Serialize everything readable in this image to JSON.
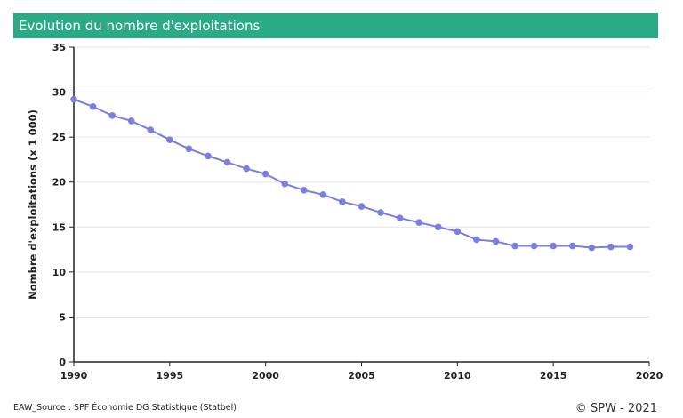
{
  "header": {
    "title": "Evolution du nombre d'exploitations"
  },
  "footer": {
    "source": "EAW_Source : SPF Économie DG Statistique (Statbel)",
    "credit": "© SPW - 2021"
  },
  "colors": {
    "header_bg": "#2aaa87",
    "line": "#7b80e0",
    "grid": "#e6e6e6"
  },
  "chart_data": {
    "type": "line",
    "title": "Evolution du nombre d'exploitations",
    "xlabel": "",
    "ylabel": "Nombre d'exploitations (x 1 000)",
    "xlim": [
      1990,
      2020
    ],
    "ylim": [
      0,
      35
    ],
    "x_ticks": [
      1990,
      1995,
      2000,
      2005,
      2010,
      2015,
      2020
    ],
    "y_ticks": [
      0,
      5,
      10,
      15,
      20,
      25,
      30,
      35
    ],
    "grid": true,
    "x": [
      1990,
      1991,
      1992,
      1993,
      1994,
      1995,
      1996,
      1997,
      1998,
      1999,
      2000,
      2001,
      2002,
      2003,
      2004,
      2005,
      2006,
      2007,
      2008,
      2009,
      2010,
      2011,
      2012,
      2013,
      2014,
      2015,
      2016,
      2017,
      2018,
      2019
    ],
    "series": [
      {
        "values": [
          29.2,
          28.4,
          27.4,
          26.8,
          25.8,
          24.7,
          23.7,
          22.9,
          22.2,
          21.5,
          20.9,
          19.8,
          19.1,
          18.6,
          17.8,
          17.3,
          16.6,
          16.0,
          15.5,
          15.0,
          14.5,
          13.6,
          13.4,
          12.9,
          12.9,
          12.9,
          12.9,
          12.7,
          12.8,
          12.8
        ]
      }
    ]
  }
}
